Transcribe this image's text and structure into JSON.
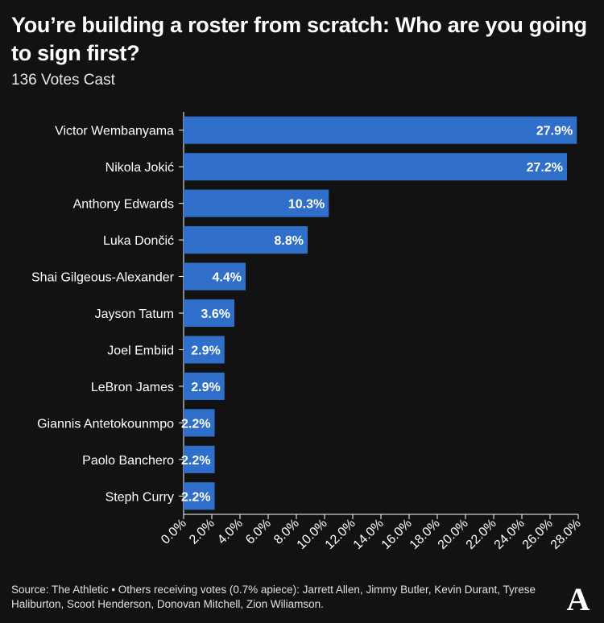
{
  "header": {
    "title": "You’re building a roster from scratch: Who are you going to sign first?",
    "subtitle": "136 Votes Cast"
  },
  "footer": {
    "source": "Source: The Athletic • Others receiving votes (0.7% apiece): Jarrett Allen, Jimmy Butler, Kevin Durant, Tyrese Haliburton, Scoot Henderson, Donovan Mitchell, Zion Wiliamson."
  },
  "logo": {
    "icon": "the-athletic-logo-icon",
    "letter": "A"
  },
  "colors": {
    "background": "#121212",
    "bar": "#2f6fc9",
    "text": "#ffffff",
    "axis": "#ffffff"
  },
  "chart_data": {
    "type": "bar",
    "orientation": "horizontal",
    "categories": [
      "Victor Wembanyama",
      "Nikola Jokić",
      "Anthony Edwards",
      "Luka Dončić",
      "Shai Gilgeous-Alexander",
      "Jayson Tatum",
      "Joel Embiid",
      "LeBron James",
      "Giannis Antetokounmpo",
      "Paolo Banchero",
      "Steph Curry"
    ],
    "values": [
      27.9,
      27.2,
      10.3,
      8.8,
      4.4,
      3.6,
      2.9,
      2.9,
      2.2,
      2.2,
      2.2
    ],
    "data_labels": [
      "27.9%",
      "27.2%",
      "10.3%",
      "8.8%",
      "4.4%",
      "3.6%",
      "2.9%",
      "2.9%",
      "2.2%",
      "2.2%",
      "2.2%"
    ],
    "xlim": [
      0,
      28
    ],
    "x_ticks": [
      0,
      2,
      4,
      6,
      8,
      10,
      12,
      14,
      16,
      18,
      20,
      22,
      24,
      26,
      28
    ],
    "x_tick_labels": [
      "0.0%",
      "2.0%",
      "4.0%",
      "6.0%",
      "8.0%",
      "10.0%",
      "12.0%",
      "14.0%",
      "16.0%",
      "18.0%",
      "20.0%",
      "22.0%",
      "24.0%",
      "26.0%",
      "28.0%"
    ],
    "grid": false,
    "legend": "none"
  }
}
